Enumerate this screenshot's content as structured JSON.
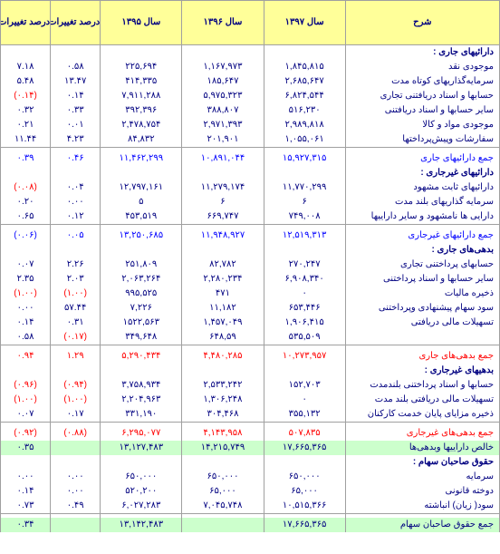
{
  "columns": {
    "desc": "شرح",
    "y1": "سال ۱۳۹۷",
    "y2": "سال ۱۳۹۶",
    "y3": "سال ۱۳۹۵",
    "pct1": "درصد تغییرات سال ۹۷به ۹۶",
    "pct2": "درصد تغییرات سال ۹۷به ۹۵"
  },
  "rows": [
    {
      "type": "section",
      "label": "دارائیهای جاری :"
    },
    {
      "type": "data",
      "label": "موجودی نقد",
      "y1": "۱,۸۴۵,۸۱۵",
      "y2": "۱,۱۶۷,۹۷۳",
      "y3": "۲۲۵,۶۹۴",
      "pct1": "۰.۵۸",
      "pct2": "۷.۱۸"
    },
    {
      "type": "data",
      "label": "سرمایه‌گذاریهای کوتاه مدت",
      "y1": "۲,۶۸۵,۶۴۷",
      "y2": "۱۸۵,۶۴۷",
      "y3": "۴۱۴,۳۳۵",
      "pct1": "۱۳.۴۷",
      "pct2": "۵.۴۸"
    },
    {
      "type": "data",
      "label": "حسابها و اسناد دریافتنی تجاری",
      "y1": "۶,۸۲۴,۵۴۴",
      "y2": "۵,۹۷۵,۳۲۳",
      "y3": "۷,۹۱۱,۲۸۸",
      "pct1": "۰.۱۴",
      "pct2": "(۰.۱۴)",
      "neg2": true
    },
    {
      "type": "data",
      "label": "سایر حسابها و اسناد دریافتنی",
      "y1": "۵۱۶,۲۳۰",
      "y2": "۳۸۸,۸۰۷",
      "y3": "۳۹۲,۳۹۶",
      "pct1": "۰.۳۳",
      "pct2": "۰.۳۲"
    },
    {
      "type": "data",
      "label": "موجودی مواد و کالا",
      "y1": "۲,۹۸۹,۸۱۸",
      "y2": "۲,۹۷۱,۳۹۳",
      "y3": "۲,۴۷۸,۷۵۴",
      "pct1": "۰.۰۱",
      "pct2": "۰.۲۱"
    },
    {
      "type": "data",
      "label": "سفارشات وپیش‌پرداختها",
      "y1": "۱,۰۵۵,۰۶۱",
      "y2": "۲۰۱,۹۰۱",
      "y3": "۸۴,۸۳۲",
      "pct1": "۴.۲۳",
      "pct2": "۱۱.۴۴"
    },
    {
      "type": "total",
      "label": "جمع دارائیهای جاری",
      "y1": "۱۵,۹۲۷,۳۱۵",
      "y2": "۱۰,۸۹۱,۰۴۴",
      "y3": "۱۱,۴۶۲,۲۹۹",
      "pct1": "۰.۴۶",
      "pct2": "۰.۳۹",
      "sep": true
    },
    {
      "type": "section",
      "label": "دارائیهای غیرجاری :"
    },
    {
      "type": "data",
      "label": "دارائیهای ثابت مشهود",
      "y1": "۱۱,۷۷۰,۲۹۹",
      "y2": "۱۱,۲۷۹,۱۷۴",
      "y3": "۱۲,۷۹۷,۱۶۱",
      "pct1": "۰.۰۴",
      "pct2": "(۰.۰۸)",
      "neg2": true
    },
    {
      "type": "data",
      "label": "سرمایه گذاریهای بلند مدت",
      "y1": "۶",
      "y2": "۶",
      "y3": "۵",
      "pct1": "۰.۰۰",
      "pct2": "۰.۲۰"
    },
    {
      "type": "data",
      "label": "دارایی ها نامشهود و سایر داراییها",
      "y1": "۷۴۹,۰۰۸",
      "y2": "۶۶۹,۷۴۷",
      "y3": "۴۵۳,۵۱۹",
      "pct1": "۰.۱۲",
      "pct2": "۰.۶۵"
    },
    {
      "type": "total",
      "label": "جمع دارائیهای غیرجاری",
      "y1": "۱۲,۵۱۹,۳۱۳",
      "y2": "۱۱,۹۴۸,۹۲۷",
      "y3": "۱۳,۲۵۰,۶۸۵",
      "pct1": "۰.۰۵",
      "pct2": "(۰.۰۶)",
      "neg2": true,
      "sep": true
    },
    {
      "type": "section",
      "label": "بدهی‌های جاری :"
    },
    {
      "type": "data",
      "label": "حسابهای پرداختنی تجاری",
      "y1": "۲۷۰,۲۴۷",
      "y2": "۸۲,۷۸۲",
      "y3": "۲۵۱,۸۰۹",
      "pct1": "۲.۲۶",
      "pct2": "۰.۰۷"
    },
    {
      "type": "data",
      "label": "سایر حسابها و اسناد پرداختنی",
      "y1": "۶,۹۰۸,۳۴۰",
      "y2": "۲,۲۸۰,۲۳۴",
      "y3": "۲,۰۶۳,۲۶۴",
      "pct1": "۲.۰۳",
      "pct2": "۲.۳۵"
    },
    {
      "type": "data",
      "label": "ذخیره مالیات",
      "y1": "۰",
      "y2": "۴۷۱",
      "y3": "۹۹۵,۵۲۵",
      "pct1": "(۱.۰۰)",
      "pct2": "(۱.۰۰)",
      "neg1": true,
      "neg2": true
    },
    {
      "type": "data",
      "label": "سود سهام پیشنهادی وپرداختنی",
      "y1": "۶۵۳,۴۴۶",
      "y2": "۱۱,۱۸۲",
      "y3": "۷,۲۲۶",
      "pct1": "۵۷.۴۴",
      "pct2": "۰.۰۰"
    },
    {
      "type": "data",
      "label": "تسهیلات مالی دریافتی",
      "y1": "۱,۹۰۶,۴۱۵",
      "y2": "۱,۴۵۷,۰۴۹",
      "y3": "۱۵۲۲,۵۶۳",
      "pct1": "۰.۳۱",
      "pct2": "۰.۱۴"
    },
    {
      "type": "data",
      "label": "",
      "y1": "۵۳۵,۵۰۹",
      "y2": "۶۴۸,۵۹",
      "y3": "۳۴۹,۶۴۸",
      "pct1": "(۰.۱۷)",
      "pct2": "۰.۵۸",
      "neg1": true
    },
    {
      "type": "redtotal",
      "label": "جمع بدهی‌های جاری",
      "y1": "۱۰,۲۷۳,۹۵۷",
      "y2": "۴,۴۸۰,۲۸۵",
      "y3": "۵,۲۹۰,۴۳۴",
      "pct1": "۱.۲۹",
      "pct2": "۰.۹۴",
      "sep": true
    },
    {
      "type": "section",
      "label": "بدهیهای غیرجاری :"
    },
    {
      "type": "data",
      "label": "حسابها و اسناد پرداختنی بلندمدت",
      "y1": "۱۵۲,۷۰۳",
      "y2": "۲,۵۳۳,۲۴۲",
      "y3": "۳,۷۵۸,۹۳۴",
      "pct1": "(۰.۹۴)",
      "pct2": "(۰.۹۶)",
      "neg1": true,
      "neg2": true
    },
    {
      "type": "data",
      "label": "تسهیلات مالی دریافتی بلند مدت",
      "y1": "۰",
      "y2": "۱,۳۰۶,۲۴۸",
      "y3": "۲,۲۰۴,۹۶۳",
      "pct1": "(۱.۰۰)",
      "pct2": "(۱.۰۰)",
      "neg1": true,
      "neg2": true
    },
    {
      "type": "data",
      "label": "ذخیره مزایای پایان خدمت کارکنان",
      "y1": "۳۵۵,۱۳۲",
      "y2": "۳۰۴,۴۶۸",
      "y3": "۳۳۱,۱۹۰",
      "pct1": "۰.۱۷",
      "pct2": "۰.۰۷"
    },
    {
      "type": "redtotal",
      "label": "جمع بدهی‌های غیرجاری",
      "y1": "۵۰۷,۸۳۵",
      "y2": "۴,۱۴۳,۹۵۸",
      "y3": "۶,۲۹۵,۰۷۷",
      "pct1": "(۰.۸۸)",
      "pct2": "(۰.۹۲)",
      "neg1": true,
      "neg2": true,
      "sep": true
    },
    {
      "type": "hl",
      "label": "خالص داراییها وبدهی‌ها",
      "y1": "۱۷,۶۶۵,۳۶۵",
      "y2": "۱۴,۲۱۵,۷۴۹",
      "y3": "۱۳,۱۲۷,۴۸۳",
      "pct1": "",
      "pct2": "۰.۳۵"
    },
    {
      "type": "section",
      "label": "حقوق صاحبان سهام :"
    },
    {
      "type": "data",
      "label": "سرمایه",
      "y1": "۶۵۰,۰۰۰",
      "y2": "۶۵۰,۰۰۰",
      "y3": "۶۵۰,۰۰۰",
      "pct1": "۰.۰۰",
      "pct2": "۰.۰۰"
    },
    {
      "type": "data",
      "label": "دوخته قانونی",
      "y1": "۶۵,۰۰۰",
      "y2": "۶۵,۰۰۰",
      "y3": "۵۲۰,۲۰۰",
      "pct1": "۰.۰۰",
      "pct2": "۰.۱۴"
    },
    {
      "type": "data",
      "label": "سود( زیان) انباشته",
      "y1": "۱۰,۵۱۵,۳۶۶",
      "y2": "۷,۰۴۵,۷۴۸",
      "y3": "۶,۰۲۷,۲۸۳",
      "pct1": "۰.۴۹",
      "pct2": "۰.۷۳"
    },
    {
      "type": "hl",
      "label": "جمع حقوق صاحبان سهام",
      "y1": "۱۷,۶۶۵,۳۶۵",
      "y2": "",
      "y3": "۱۳,۱۴۲,۴۸۳",
      "pct1": "",
      "pct2": "۰.۳۴",
      "sep": true
    }
  ],
  "style": {
    "header_bg": "#ffff99",
    "text_color": "#000080",
    "total_color": "#0000ff",
    "neg_color": "#ff0000",
    "hl_bg": "#ccffcc",
    "border_color": "#a0a0a0"
  }
}
